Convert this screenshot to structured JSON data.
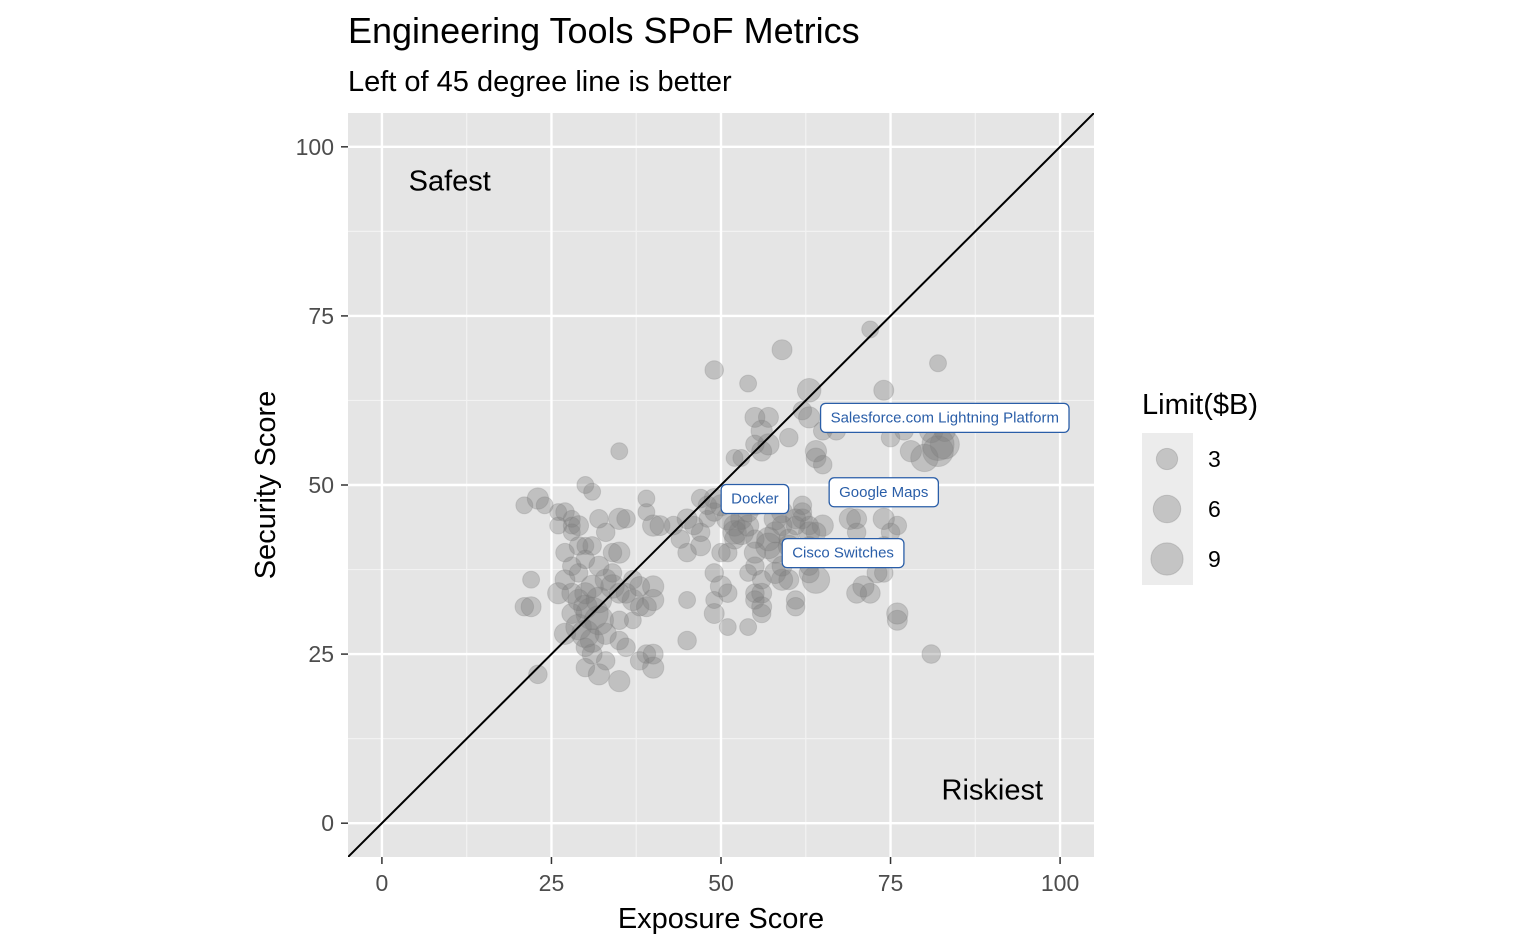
{
  "chart_data": {
    "type": "scatter",
    "title": "Engineering Tools SPoF Metrics",
    "subtitle": "Left of 45 degree line is better",
    "xlabel": "Exposure Score",
    "ylabel": "Security Score",
    "xlim": [
      -5,
      105
    ],
    "ylim": [
      -5,
      105
    ],
    "x_ticks": [
      0,
      25,
      50,
      75,
      100
    ],
    "y_ticks": [
      0,
      25,
      50,
      75,
      100
    ],
    "grid": true,
    "reference_line": {
      "slope": 1,
      "intercept": 0
    },
    "corner_labels": [
      {
        "text": "Safest",
        "x": 10,
        "y": 95
      },
      {
        "text": "Riskiest",
        "x": 90,
        "y": 5
      }
    ],
    "size_legend": {
      "title": "Limit($B)",
      "position": "right",
      "entries": [
        {
          "label": "3",
          "value": 3
        },
        {
          "label": "6",
          "value": 6
        },
        {
          "label": "9",
          "value": 9
        }
      ]
    },
    "point_color": "#7a7a7a",
    "callout_color": "#2a5ea8",
    "callouts": [
      {
        "label": "Salesforce.com Lightning Platform",
        "x": 83,
        "y": 60
      },
      {
        "label": "Docker",
        "x": 55,
        "y": 48
      },
      {
        "label": "Google Maps",
        "x": 74,
        "y": 49
      },
      {
        "label": "Cisco Switches",
        "x": 68,
        "y": 40
      }
    ],
    "points": [
      [
        21,
        47,
        1.5
      ],
      [
        23,
        48,
        3
      ],
      [
        24,
        47,
        1.5
      ],
      [
        26,
        46,
        1.5
      ],
      [
        21,
        32,
        2
      ],
      [
        22,
        32,
        2.5
      ],
      [
        22,
        36,
        1.5
      ],
      [
        23,
        22,
        2
      ],
      [
        26,
        44,
        1.5
      ],
      [
        27,
        46,
        2
      ],
      [
        28,
        44,
        1.5
      ],
      [
        28,
        43,
        1.5
      ],
      [
        28,
        45,
        1.5
      ],
      [
        29,
        44,
        2.5
      ],
      [
        27,
        40,
        2
      ],
      [
        29,
        41,
        2
      ],
      [
        30,
        41,
        1.5
      ],
      [
        31,
        41,
        2
      ],
      [
        30,
        39,
        2
      ],
      [
        28,
        38,
        2
      ],
      [
        27,
        36,
        2.5
      ],
      [
        26,
        34,
        3
      ],
      [
        28,
        34,
        2.5
      ],
      [
        29,
        33,
        3
      ],
      [
        30,
        32,
        4
      ],
      [
        31,
        31,
        9
      ],
      [
        32,
        30,
        7
      ],
      [
        30,
        28,
        6
      ],
      [
        29,
        29,
        5
      ],
      [
        31,
        27,
        4
      ],
      [
        33,
        28,
        3
      ],
      [
        32,
        33,
        5
      ],
      [
        34,
        35,
        4
      ],
      [
        33,
        36,
        3
      ],
      [
        32,
        38,
        2.5
      ],
      [
        31,
        35,
        3.5
      ],
      [
        30,
        34,
        3
      ],
      [
        29,
        37,
        2
      ],
      [
        28,
        31,
        2.5
      ],
      [
        27,
        28,
        3
      ],
      [
        30,
        26,
        2
      ],
      [
        31,
        25,
        2.5
      ],
      [
        30,
        23,
        2
      ],
      [
        32,
        22,
        3
      ],
      [
        35,
        21,
        3
      ],
      [
        33,
        24,
        2
      ],
      [
        30,
        50,
        1.5
      ],
      [
        31,
        49,
        1.5
      ],
      [
        32,
        45,
        2
      ],
      [
        33,
        43,
        2
      ],
      [
        34,
        40,
        2
      ],
      [
        35,
        40,
        3
      ],
      [
        35,
        45,
        3
      ],
      [
        36,
        45,
        2
      ],
      [
        35,
        55,
        1.5
      ],
      [
        34,
        37,
        2
      ],
      [
        35,
        34,
        2.5
      ],
      [
        35,
        30,
        2
      ],
      [
        35,
        27,
        2
      ],
      [
        36,
        26,
        2
      ],
      [
        36,
        34,
        2.5
      ],
      [
        37,
        36,
        2
      ],
      [
        37,
        33,
        3
      ],
      [
        38,
        32,
        2
      ],
      [
        38,
        35,
        2.5
      ],
      [
        37,
        30,
        1.5
      ],
      [
        38,
        24,
        2
      ],
      [
        39,
        25,
        2
      ],
      [
        40,
        25,
        2.5
      ],
      [
        40,
        23,
        3
      ],
      [
        39,
        32,
        2.5
      ],
      [
        40,
        33,
        3
      ],
      [
        40,
        35,
        3
      ],
      [
        39,
        46,
        1.5
      ],
      [
        40,
        44,
        3
      ],
      [
        41,
        44,
        2.5
      ],
      [
        39,
        48,
        1.5
      ],
      [
        43,
        44,
        2
      ],
      [
        44,
        42,
        2
      ],
      [
        45,
        45,
        2.5
      ],
      [
        45,
        40,
        2
      ],
      [
        45,
        33,
        1.5
      ],
      [
        45,
        27,
        2
      ],
      [
        46,
        44,
        2
      ],
      [
        47,
        43,
        2
      ],
      [
        47,
        41,
        2.5
      ],
      [
        48,
        45,
        1.5
      ],
      [
        47,
        48,
        2
      ],
      [
        48,
        47,
        2
      ],
      [
        49,
        46,
        2
      ],
      [
        49,
        48,
        2.5
      ],
      [
        50,
        47,
        3
      ],
      [
        49,
        37,
        2
      ],
      [
        49,
        33,
        1.5
      ],
      [
        49,
        31,
        2.5
      ],
      [
        50,
        35,
        3
      ],
      [
        51,
        34,
        2
      ],
      [
        51,
        29,
        1.5
      ],
      [
        50,
        40,
        2
      ],
      [
        51,
        40,
        2
      ],
      [
        52,
        42,
        2.5
      ],
      [
        52,
        44,
        3
      ],
      [
        51,
        45,
        3.5
      ],
      [
        52,
        43,
        4
      ],
      [
        53,
        43,
        4.5
      ],
      [
        53,
        45,
        3
      ],
      [
        54,
        46,
        2.5
      ],
      [
        54,
        44,
        3
      ],
      [
        55,
        47,
        2.5
      ],
      [
        55,
        42,
        2
      ],
      [
        55,
        40,
        3
      ],
      [
        55,
        38,
        2
      ],
      [
        55,
        34,
        2
      ],
      [
        55,
        33,
        2
      ],
      [
        54,
        29,
        1.5
      ],
      [
        54,
        37,
        1.5
      ],
      [
        56,
        34,
        2.5
      ],
      [
        56,
        32,
        2.5
      ],
      [
        56,
        31,
        2
      ],
      [
        56,
        36,
        2
      ],
      [
        57,
        41,
        5
      ],
      [
        57,
        42,
        4
      ],
      [
        58,
        40,
        3
      ],
      [
        58,
        43,
        3
      ],
      [
        58,
        45,
        3.5
      ],
      [
        59,
        46,
        3
      ],
      [
        59,
        44,
        2.5
      ],
      [
        59,
        38,
        2.5
      ],
      [
        58,
        37,
        3
      ],
      [
        59,
        36,
        3
      ],
      [
        60,
        36,
        2.5
      ],
      [
        60,
        41,
        3
      ],
      [
        60,
        42,
        2.5
      ],
      [
        61,
        45,
        2.5
      ],
      [
        61,
        44,
        2
      ],
      [
        61,
        33,
        2
      ],
      [
        61,
        32,
        2
      ],
      [
        62,
        46,
        2
      ],
      [
        62,
        47,
        2
      ],
      [
        62,
        45,
        2.5
      ],
      [
        63,
        44,
        2
      ],
      [
        63,
        43,
        3
      ],
      [
        63,
        41,
        2
      ],
      [
        64,
        43,
        2.5
      ],
      [
        64,
        36,
        6
      ],
      [
        65,
        44,
        3
      ],
      [
        63,
        37,
        2.5
      ],
      [
        63,
        38,
        2
      ],
      [
        52,
        54,
        1.5
      ],
      [
        53,
        54,
        1.5
      ],
      [
        54,
        65,
        1.5
      ],
      [
        55,
        60,
        2.5
      ],
      [
        56,
        58,
        3
      ],
      [
        57,
        56,
        3
      ],
      [
        57,
        60,
        2.5
      ],
      [
        56,
        55,
        2.5
      ],
      [
        55,
        56,
        2
      ],
      [
        59,
        70,
        2.5
      ],
      [
        60,
        57,
        2
      ],
      [
        63,
        64,
        4
      ],
      [
        63,
        60,
        3
      ],
      [
        64,
        55,
        3
      ],
      [
        65,
        53,
        2
      ],
      [
        64,
        54,
        2.5
      ],
      [
        65,
        58,
        2
      ],
      [
        67,
        58,
        2
      ],
      [
        62,
        61,
        2
      ],
      [
        66,
        59,
        2
      ],
      [
        69,
        45,
        3
      ],
      [
        70,
        45,
        2.5
      ],
      [
        70,
        43,
        2
      ],
      [
        70,
        34,
        2.5
      ],
      [
        71,
        35,
        3
      ],
      [
        72,
        34,
        2.5
      ],
      [
        73,
        37,
        2.5
      ],
      [
        74,
        37,
        2
      ],
      [
        74,
        41,
        2
      ],
      [
        75,
        40,
        2
      ],
      [
        75,
        43,
        2
      ],
      [
        74,
        45,
        3
      ],
      [
        76,
        44,
        2
      ],
      [
        76,
        31,
        3
      ],
      [
        76,
        30,
        2.5
      ],
      [
        72,
        73,
        1.5
      ],
      [
        74,
        64,
        2.5
      ],
      [
        75,
        57,
        2
      ],
      [
        77,
        58,
        2
      ],
      [
        78,
        55,
        3
      ],
      [
        80,
        54,
        6
      ],
      [
        82,
        55,
        8
      ],
      [
        82,
        56,
        9
      ],
      [
        83,
        56,
        7
      ],
      [
        81,
        58,
        4
      ],
      [
        83,
        58,
        3
      ],
      [
        81,
        25,
        2
      ],
      [
        82,
        68,
        1.5
      ],
      [
        49,
        67,
        2
      ],
      [
        67,
        59,
        1.5
      ]
    ]
  }
}
